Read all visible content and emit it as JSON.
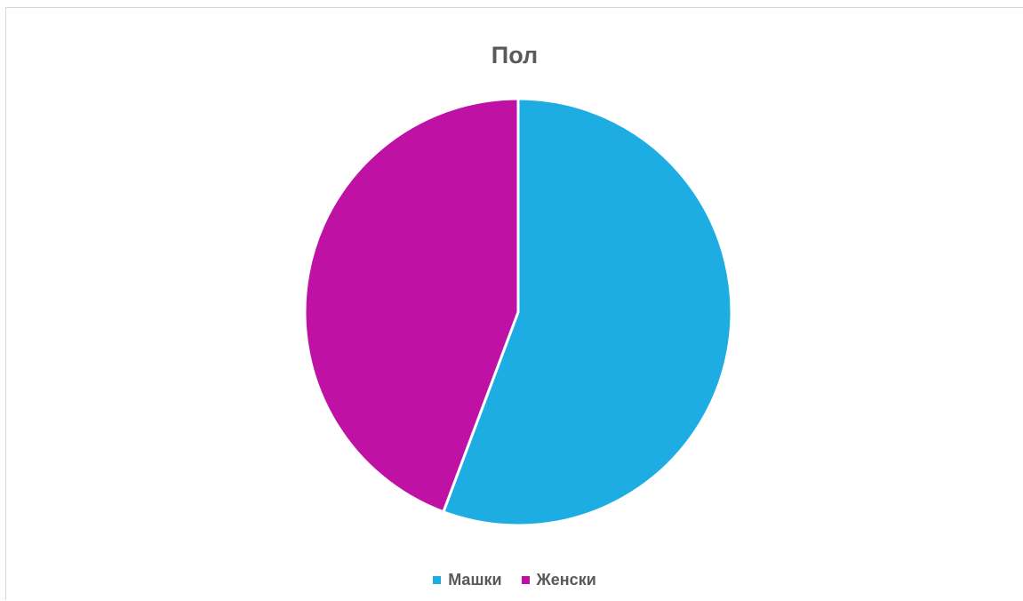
{
  "chart_data": {
    "type": "pie",
    "title": "Пол",
    "categories": [
      "Машки",
      "Женски"
    ],
    "values": [
      55.7,
      44.3
    ],
    "colors": [
      "#1eade2",
      "#bf11a4"
    ],
    "legend_position": "bottom"
  }
}
